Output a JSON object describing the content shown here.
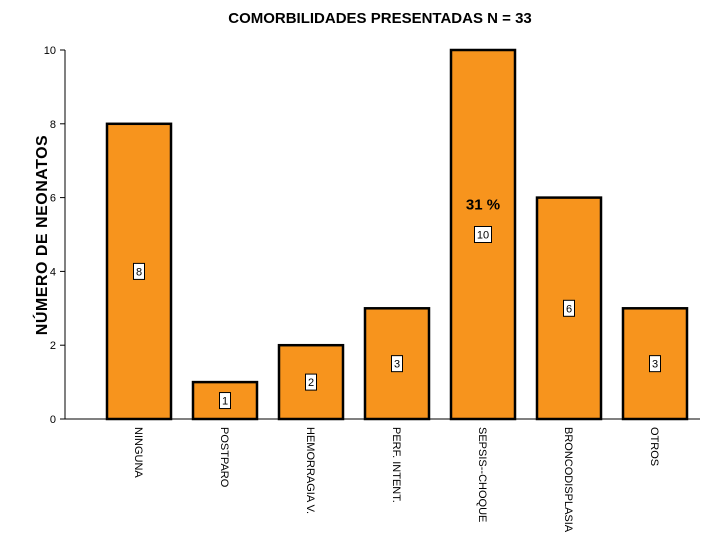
{
  "chart_data": {
    "type": "bar",
    "title": "COMORBILIDADES PRESENTADAS  N = 33",
    "xlabel": "",
    "ylabel": "NÚMERO  DE  NEONATOS",
    "categories": [
      "NINGUNA",
      "POSTPARO",
      "HEMORRAGIA V.",
      "PERF. INTENT.",
      "SEPSIS--CHOQUE",
      "BRONCODISPLASIA",
      "OTROS"
    ],
    "values": [
      8,
      1,
      2,
      3,
      10,
      6,
      3
    ],
    "data_labels": [
      "8",
      "1",
      "2",
      "3",
      "10",
      "6",
      "3"
    ],
    "ylim": [
      0,
      10
    ],
    "yticks": [
      0,
      2,
      4,
      6,
      8,
      10
    ],
    "grid": false,
    "bar_color": "#F7941D",
    "annotations": [
      {
        "text": "31 %",
        "category": "SEPSIS--CHOQUE",
        "y": 6.0
      }
    ]
  }
}
